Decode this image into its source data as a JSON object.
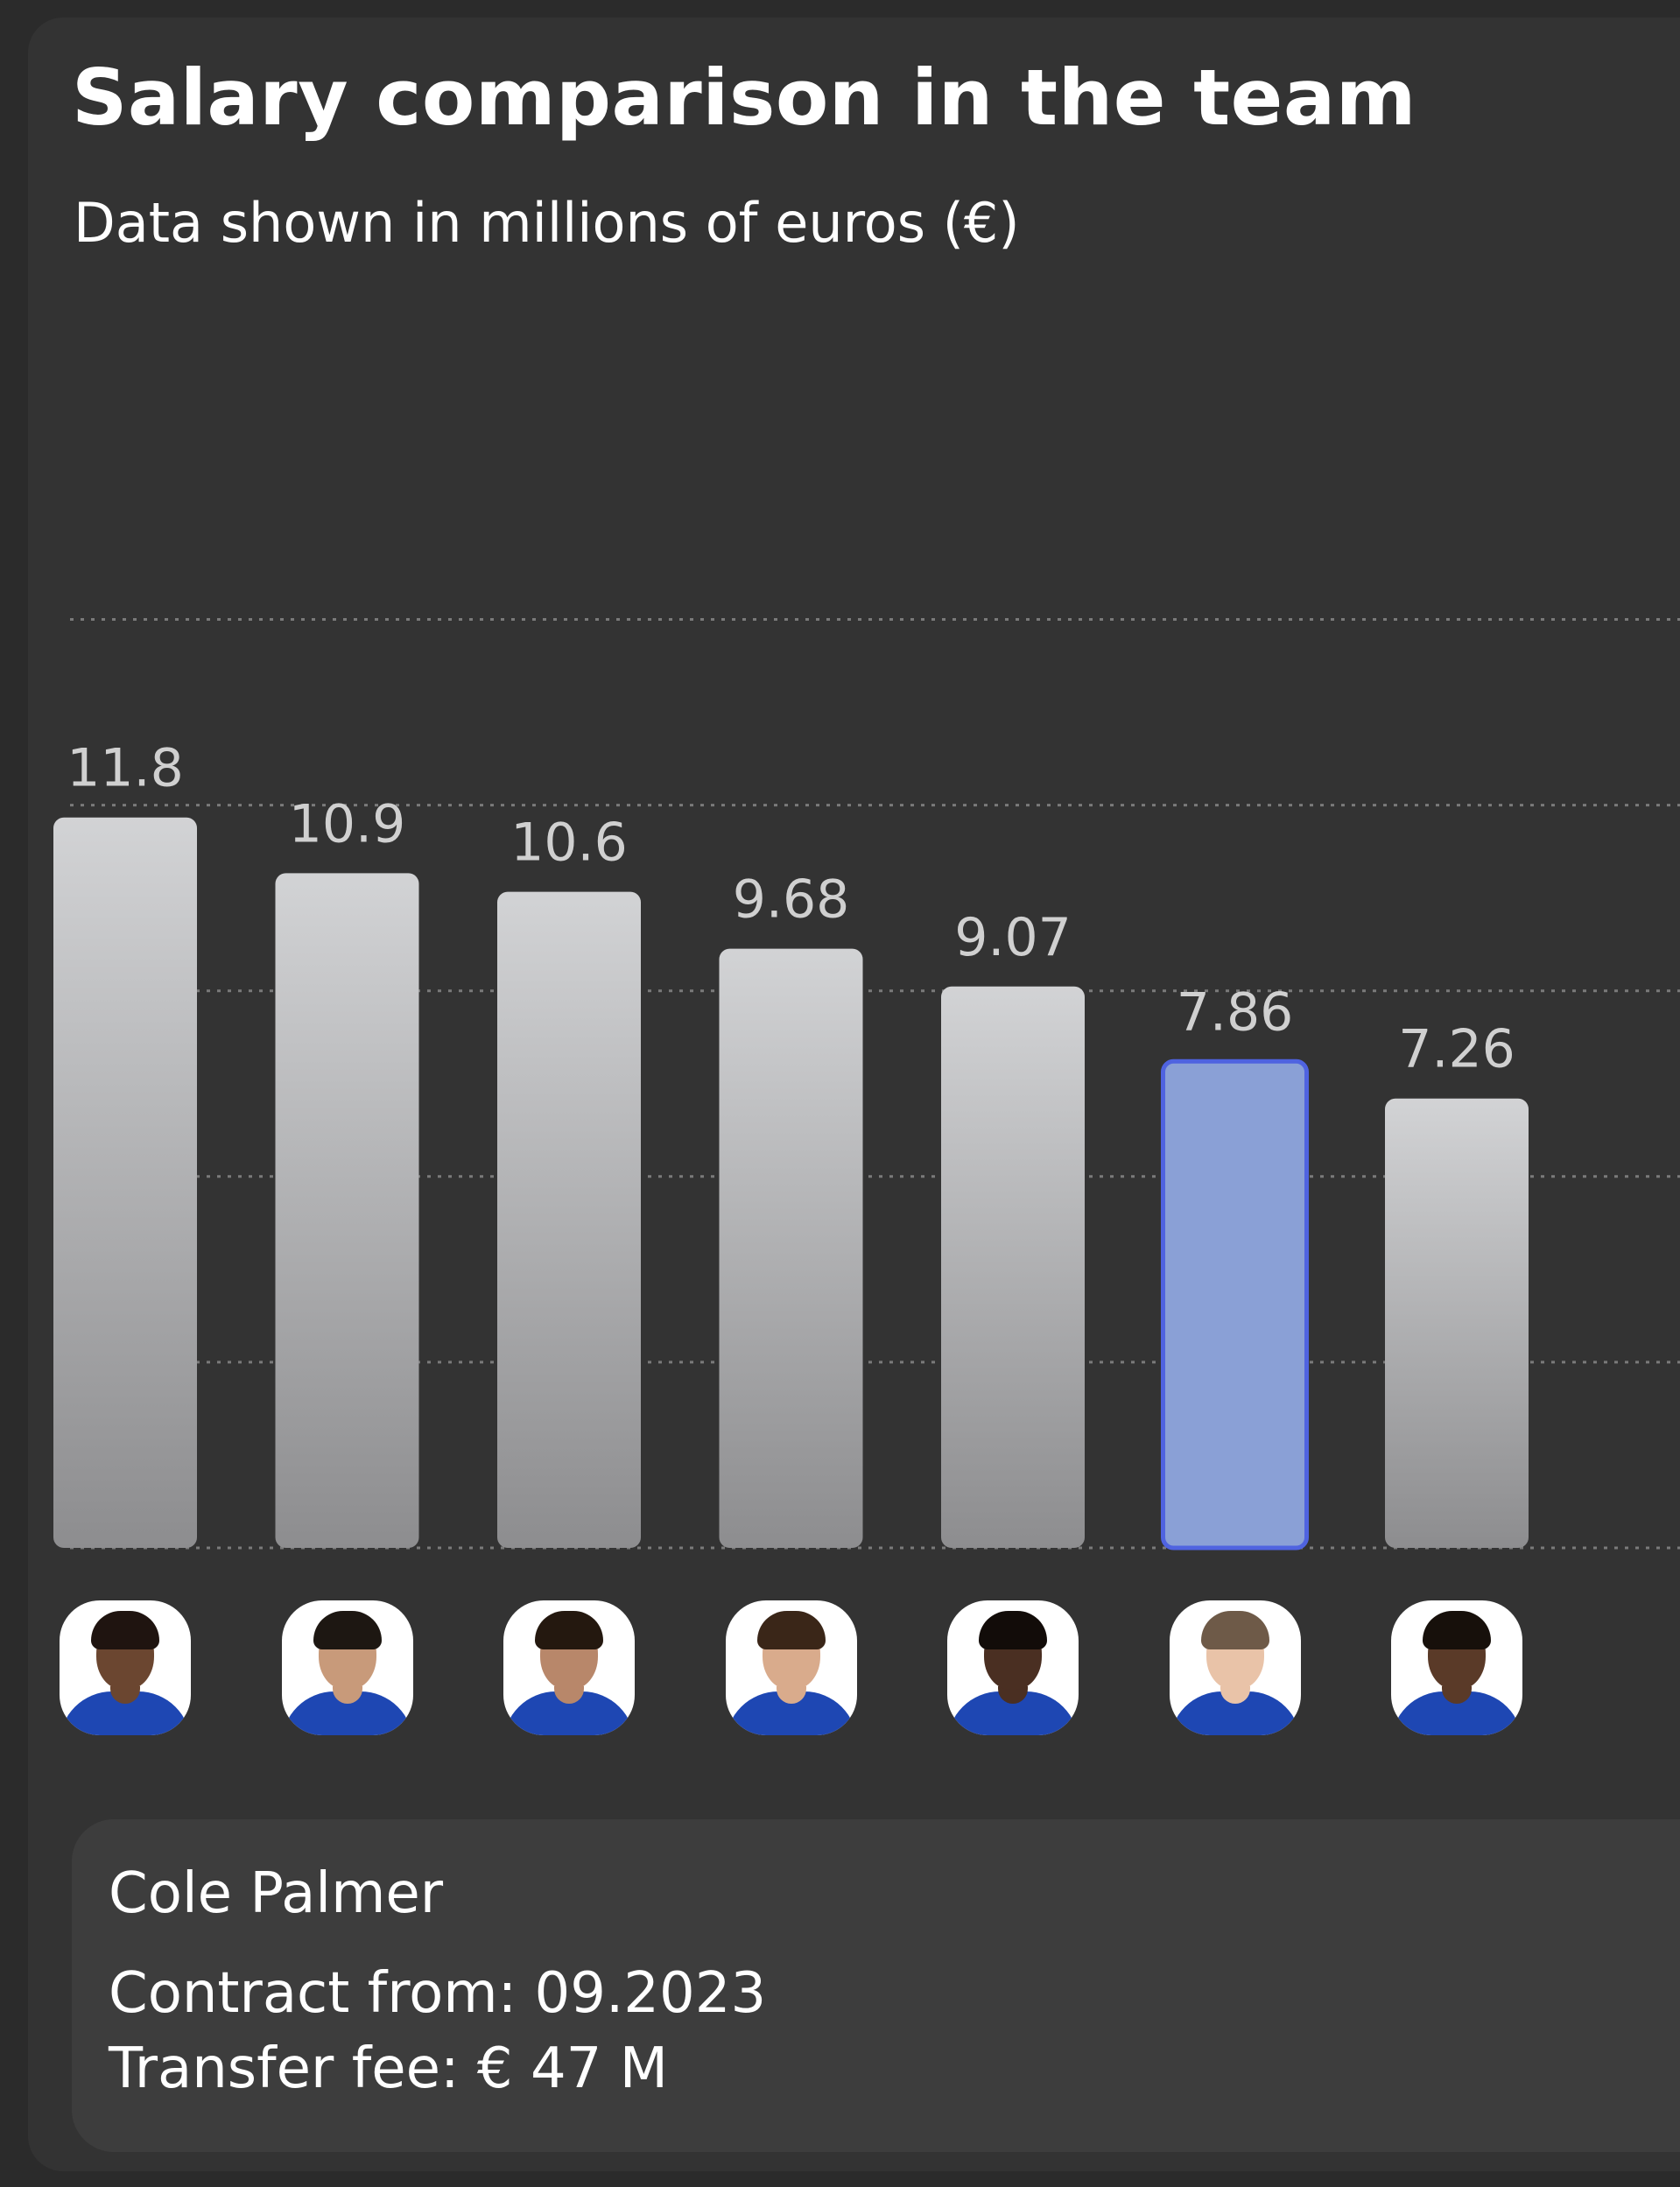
{
  "header": {
    "title": "Salary comparison in the team",
    "subtitle": "Data shown in millions of euros (€)"
  },
  "colors": {
    "background": "#333333",
    "bar_default_top": "#d2d3d5",
    "bar_default_bottom": "#8d8d8f",
    "bar_highlight": "#8aa0d6",
    "bar_highlight_border": "#4f63e0",
    "gridline": "#7a7a7a",
    "value_label": "#d0d0d0",
    "jersey": "#1e47b3"
  },
  "chart_data": {
    "type": "bar",
    "title": "Salary comparison in the team",
    "subtitle": "Data shown in millions of euros (€)",
    "xlabel": "",
    "ylabel": "",
    "ylim": [
      0,
      15
    ],
    "grid": true,
    "categories": [
      "player-1",
      "player-2",
      "player-3",
      "player-4",
      "player-5",
      "Cole Palmer",
      "player-7"
    ],
    "values": [
      11.8,
      10.9,
      10.6,
      9.68,
      9.07,
      7.86,
      7.26
    ],
    "value_labels": [
      "11.8",
      "10.9",
      "10.6",
      "9.68",
      "9.07",
      "7.86",
      "7.26"
    ],
    "highlight_index": 5
  },
  "players": [
    {
      "avatar": "player-photo",
      "skin": "#6b4630",
      "hair": "#1f1410"
    },
    {
      "avatar": "player-photo",
      "skin": "#c89a7a",
      "hair": "#1d1712"
    },
    {
      "avatar": "player-photo",
      "skin": "#b8876a",
      "hair": "#24180f"
    },
    {
      "avatar": "player-photo",
      "skin": "#d9ab8c",
      "hair": "#3a2618"
    },
    {
      "avatar": "player-photo",
      "skin": "#4a2f22",
      "hair": "#120c09"
    },
    {
      "avatar": "player-photo",
      "skin": "#e9c3a8",
      "hair": "#6e5a48"
    },
    {
      "avatar": "player-photo",
      "skin": "#5a3a28",
      "hair": "#17100b"
    }
  ],
  "info": {
    "name": "Cole Palmer",
    "contract": "Contract from: 09.2023",
    "transfer_fee": "Transfer fee: € 47 M"
  }
}
